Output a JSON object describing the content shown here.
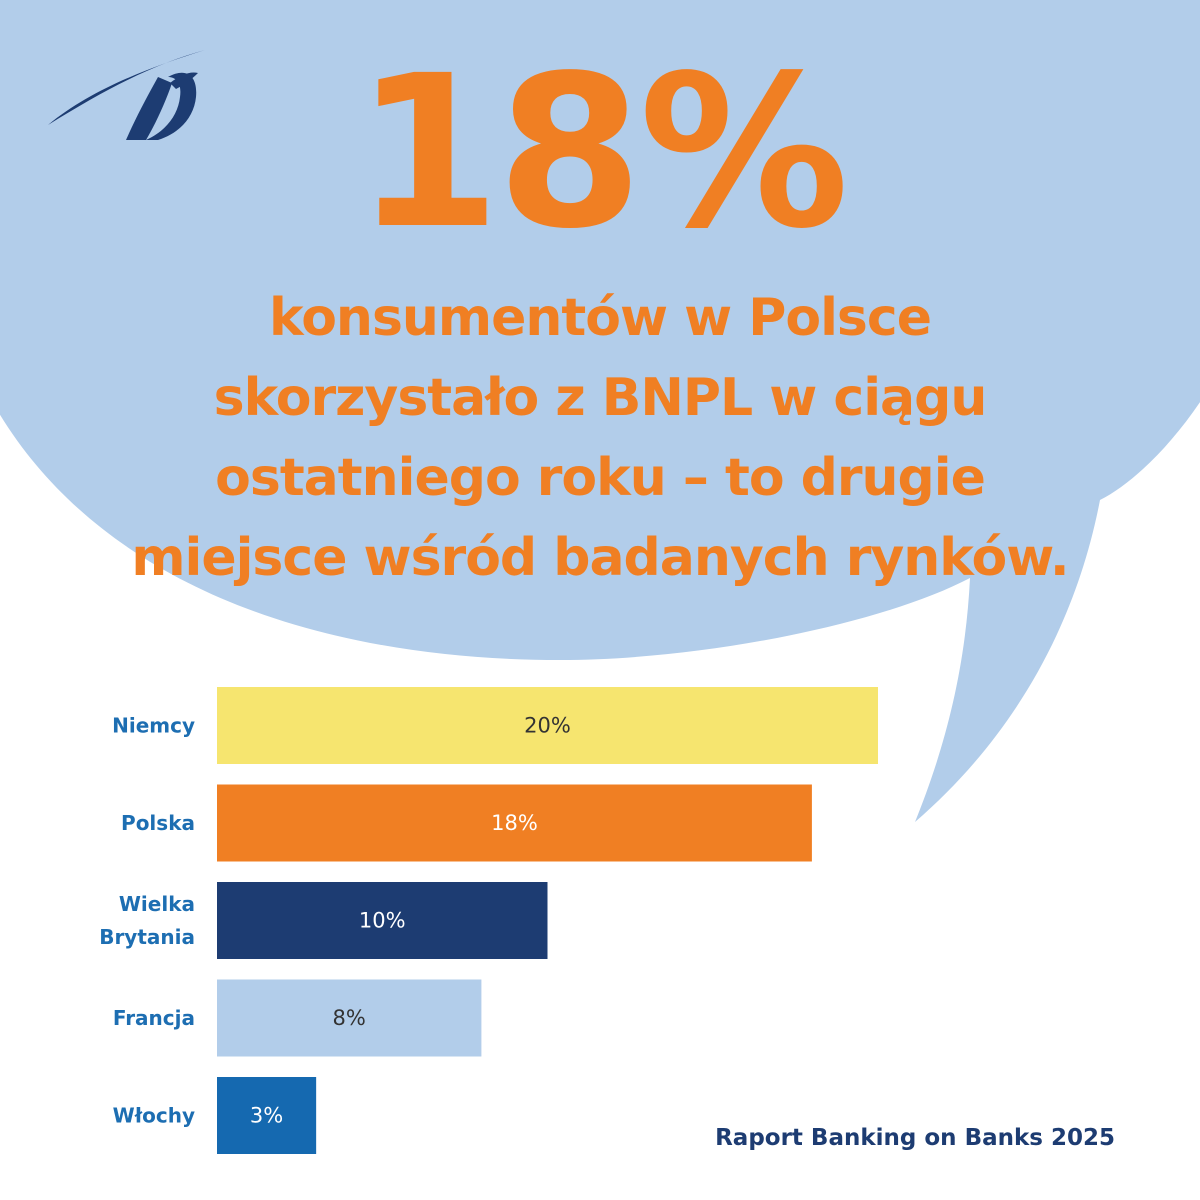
{
  "headline": "18%",
  "subtitle": "konsumentów w Polsce skorzystało z BNPL w ciągu ostatniego roku – to drugie miejsce wśród badanych rynków.",
  "source": "Raport Banking on Banks 2025",
  "colors": {
    "accent": "#f07f23",
    "bubble": "#b2cdea",
    "navy": "#1d3c72",
    "label": "#1d6eb2"
  },
  "logo": "bird-logo-icon",
  "chart_data": {
    "type": "bar",
    "orientation": "horizontal",
    "categories": [
      "Niemcy",
      "Polska",
      "Wielka Brytania",
      "Francja",
      "Włochy"
    ],
    "values": [
      20,
      18,
      10,
      8,
      3
    ],
    "value_labels": [
      "20%",
      "18%",
      "10%",
      "8%",
      "3%"
    ],
    "bar_colors": [
      "#f6e56f",
      "#f07f23",
      "#1d3c72",
      "#b2cdea",
      "#1569b0"
    ],
    "label_colors": [
      "#333333",
      "#ffffff",
      "#ffffff",
      "#333333",
      "#ffffff"
    ],
    "unit": "%",
    "grid": false,
    "legend": "none"
  }
}
